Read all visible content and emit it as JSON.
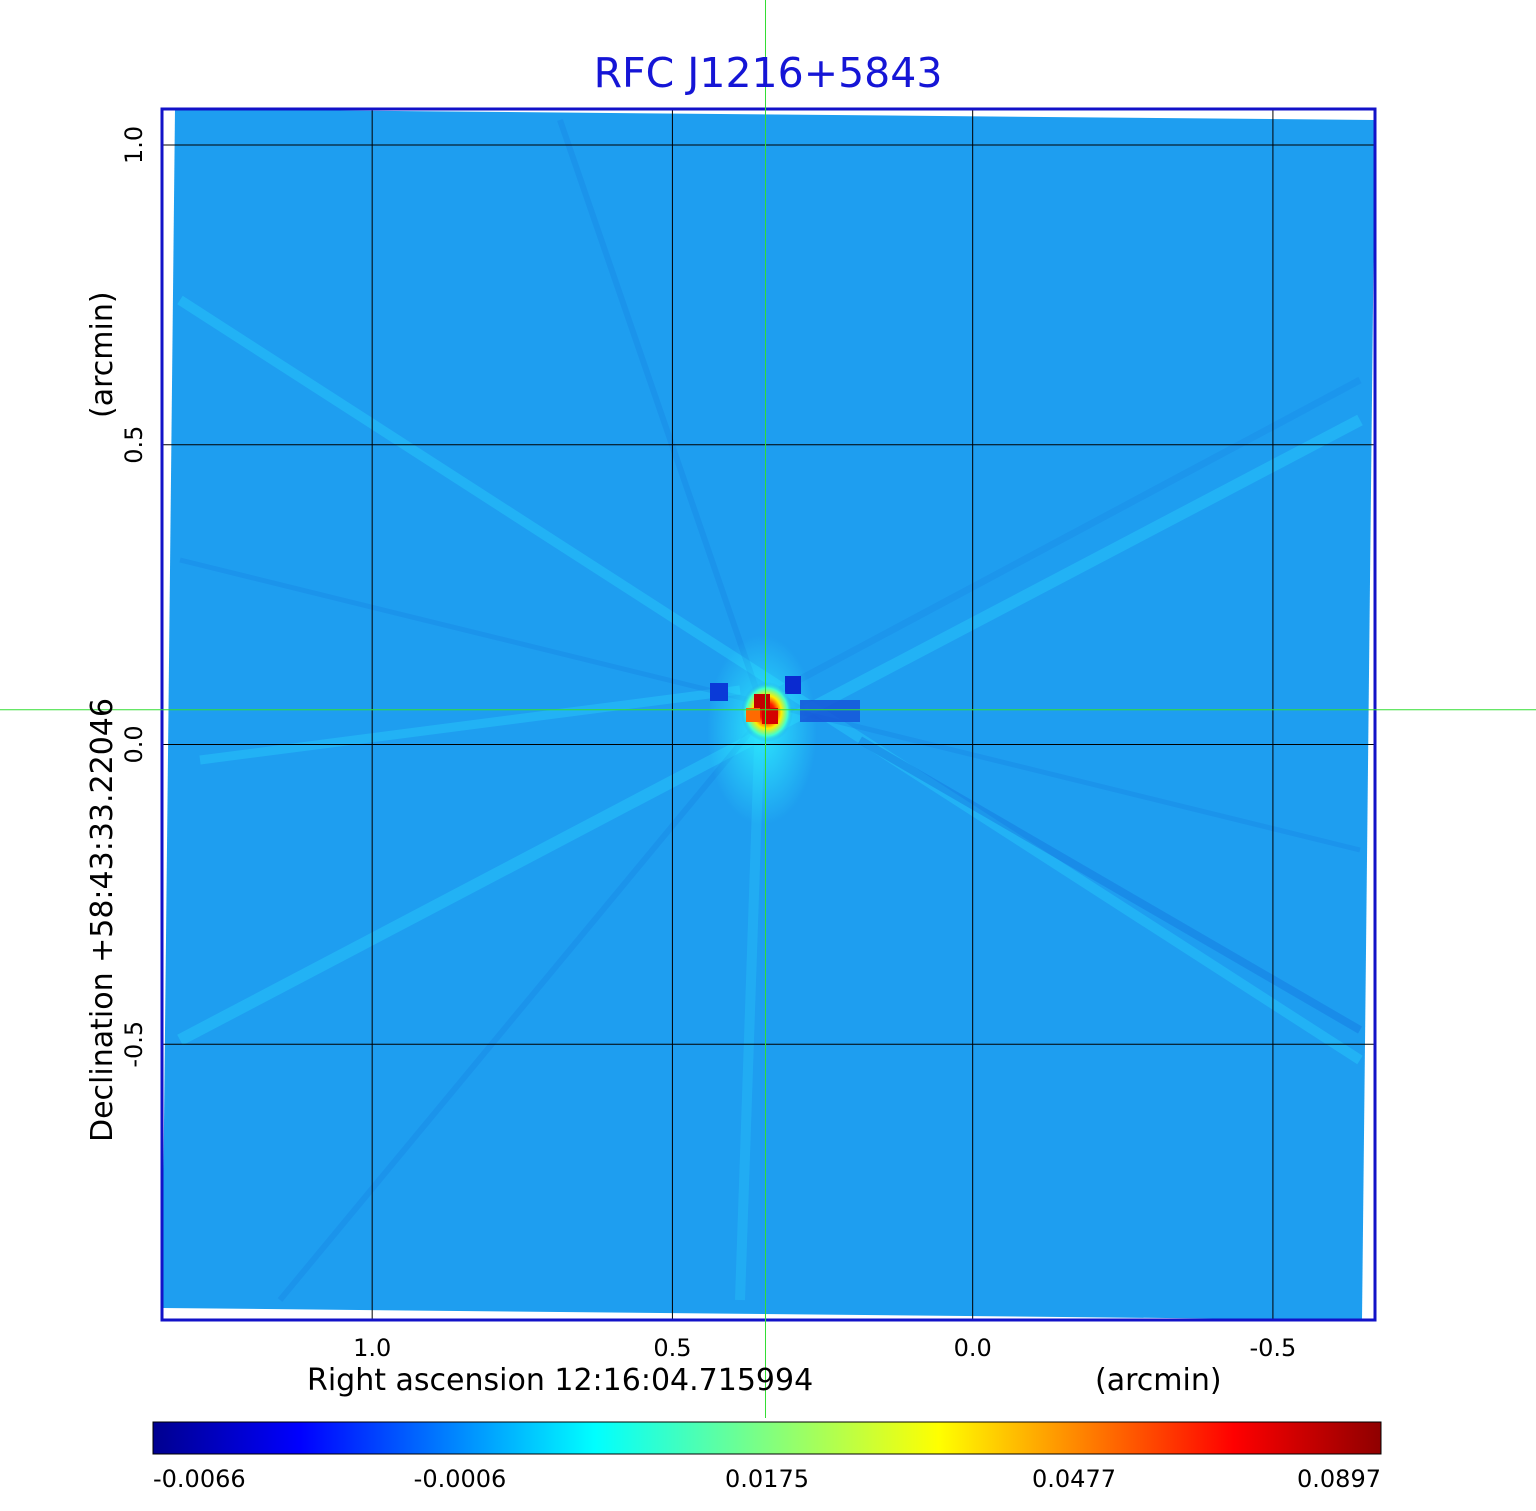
{
  "chart_data": {
    "type": "heatmap",
    "title": "RFC J1216+5843",
    "xlabel": "Right ascension  12:16:04.715994",
    "xunit": "(arcmin)",
    "ylabel": "Declination  +58:43:33.22046",
    "yunit": "(arcmin)",
    "x_axis_direction": "decreasing to the right",
    "xlim": [
      1.35,
      -0.67
    ],
    "ylim": [
      -0.96,
      1.06
    ],
    "x_ticks": [
      1.0,
      0.5,
      0.0,
      -0.5
    ],
    "x_tick_labels": [
      "1.0",
      "0.5",
      "0.0",
      "-0.5"
    ],
    "y_ticks": [
      1.0,
      0.5,
      0.0,
      -0.5
    ],
    "y_tick_labels": [
      "1.0",
      "0.5",
      "0.0",
      "-0.5"
    ],
    "grid": true,
    "crosshair": {
      "x": 0.345,
      "y": 0.058
    },
    "peak": {
      "x": 0.345,
      "y": 0.055,
      "value": 0.0897
    },
    "background_level": -0.0006,
    "colorbar": {
      "placement": "bottom",
      "colormap": "jet",
      "tick_labels": [
        "-0.0066",
        "-0.0006",
        "0.0175",
        "0.0477",
        "0.0897"
      ],
      "min": -0.0066,
      "max": 0.0897
    },
    "colors": {
      "title": "#1515d6",
      "frame": "#1212c8",
      "grid": "#000000",
      "crosshair": "#33dd33",
      "background_field": "#1e9ef0"
    }
  }
}
